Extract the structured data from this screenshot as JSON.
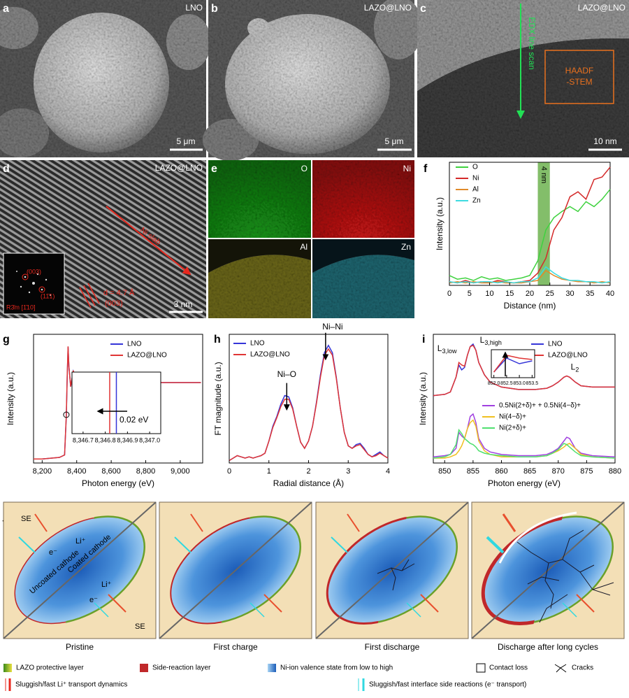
{
  "panels": {
    "a": {
      "letter": "a",
      "label": "LNO",
      "scale": "5 μm"
    },
    "b": {
      "letter": "b",
      "label": "LAZO@LNO",
      "scale": "5 μm"
    },
    "c": {
      "letter": "c",
      "label": "LAZO@LNO",
      "scan": "EDX line scan",
      "box": [
        "HAADF",
        "-STEM"
      ],
      "scale": "10 nm"
    },
    "d": {
      "letter": "d",
      "label": "LAZO@LNO",
      "slab": "Ni slab",
      "spacing": "d = 4.7 Å",
      "plane": "(003)",
      "fft_title": "R3̄m [1̄10]",
      "fft_spots": [
        "(003)",
        "(11̄1)"
      ],
      "scale": "3 nm"
    },
    "e": {
      "letter": "e",
      "maps": [
        "O",
        "Ni",
        "Al",
        "Zn"
      ]
    }
  },
  "chart_data": [
    {
      "type": "line",
      "panel": "f",
      "xlabel": "Distance (nm)",
      "ylabel": "Intensity (a.u.)",
      "xlim": [
        0,
        40
      ],
      "xticks": [
        0,
        5,
        10,
        15,
        20,
        25,
        30,
        35,
        40
      ],
      "ylim": [
        0,
        1
      ],
      "band": [
        22,
        25
      ],
      "band_label": "4 nm",
      "x": [
        0,
        2,
        4,
        6,
        8,
        10,
        12,
        14,
        16,
        18,
        20,
        22,
        24,
        26,
        28,
        30,
        32,
        34,
        36,
        38,
        40
      ],
      "series": [
        {
          "name": "O",
          "color": "#3fd23f",
          "values": [
            0.08,
            0.05,
            0.06,
            0.04,
            0.07,
            0.05,
            0.06,
            0.04,
            0.05,
            0.06,
            0.08,
            0.2,
            0.45,
            0.55,
            0.6,
            0.64,
            0.6,
            0.68,
            0.64,
            0.7,
            0.78
          ]
        },
        {
          "name": "Ni",
          "color": "#d42a2a",
          "values": [
            0.03,
            0.02,
            0.04,
            0.02,
            0.03,
            0.02,
            0.04,
            0.03,
            0.02,
            0.03,
            0.04,
            0.1,
            0.22,
            0.45,
            0.55,
            0.72,
            0.76,
            0.7,
            0.86,
            0.88,
            0.96
          ]
        },
        {
          "name": "Al",
          "color": "#e08a2a",
          "values": [
            0.02,
            0.03,
            0.02,
            0.03,
            0.02,
            0.02,
            0.03,
            0.02,
            0.02,
            0.02,
            0.03,
            0.04,
            0.12,
            0.08,
            0.05,
            0.04,
            0.03,
            0.03,
            0.02,
            0.03,
            0.02
          ]
        },
        {
          "name": "Zn",
          "color": "#3ddbe0",
          "values": [
            0.03,
            0.02,
            0.03,
            0.02,
            0.03,
            0.03,
            0.02,
            0.03,
            0.02,
            0.03,
            0.03,
            0.06,
            0.15,
            0.1,
            0.06,
            0.04,
            0.04,
            0.03,
            0.03,
            0.02,
            0.03
          ]
        }
      ]
    },
    {
      "type": "line",
      "panel": "g",
      "xlabel": "Photon energy (eV)",
      "ylabel": "Intensity (a.u.)",
      "xlim": [
        8150,
        9130
      ],
      "xticks": [
        {
          "value": 8200,
          "label": "8,200"
        },
        {
          "value": 8400,
          "label": "8,400"
        },
        {
          "value": 8600,
          "label": "8,600"
        },
        {
          "value": 8800,
          "label": "8,800"
        },
        {
          "value": 9000,
          "label": "9,000"
        }
      ],
      "ylim": [
        0,
        1.6
      ],
      "x": [
        8150,
        8200,
        8300,
        8330,
        8340,
        8345,
        8350,
        8355,
        8365,
        8380,
        8400,
        8420,
        8450,
        8500,
        8600,
        8700,
        8800,
        9000,
        9120
      ],
      "series": [
        {
          "name": "LNO",
          "color": "#3535d8",
          "values": [
            0.05,
            0.05,
            0.07,
            0.1,
            0.58,
            1.08,
            1.44,
            1.2,
            0.95,
            1.14,
            1.02,
            0.98,
            1.05,
            1.0,
            1.02,
            1.0,
            1.0,
            1.0,
            1.0
          ]
        },
        {
          "name": "LAZO@LNO",
          "color": "#e03535",
          "values": [
            0.05,
            0.05,
            0.07,
            0.1,
            0.6,
            1.1,
            1.45,
            1.2,
            0.95,
            1.15,
            1.02,
            0.98,
            1.05,
            1.0,
            1.02,
            1.0,
            1.0,
            1.0,
            1.0
          ]
        }
      ],
      "inset": {
        "xlim": [
          8346.65,
          8347.05
        ],
        "xticks": [
          {
            "value": 8346.7,
            "label": "8,346.7"
          },
          {
            "value": 8346.8,
            "label": "8,346.8"
          },
          {
            "value": 8346.9,
            "label": "8,346.9"
          },
          {
            "value": 8347.0,
            "label": "8,347.0"
          }
        ],
        "lines": [
          {
            "color": "#3535d8",
            "x": 8346.85
          },
          {
            "color": "#e03535",
            "x": 8346.82
          }
        ],
        "annotation": "0.02 eV"
      }
    },
    {
      "type": "line",
      "panel": "h",
      "xlabel": "Radial distance (Å)",
      "ylabel": "FT magnitude (a.u.)",
      "xlim": [
        0,
        4
      ],
      "xticks": [
        0,
        1,
        2,
        3,
        4
      ],
      "ylim": [
        0,
        1.05
      ],
      "annotations": [
        "Ni–O",
        "Ni–Ni"
      ],
      "x": [
        0,
        0.1,
        0.2,
        0.3,
        0.4,
        0.5,
        0.6,
        0.7,
        0.8,
        0.9,
        1.0,
        1.1,
        1.2,
        1.3,
        1.4,
        1.5,
        1.6,
        1.7,
        1.8,
        1.9,
        2.0,
        2.1,
        2.2,
        2.3,
        2.4,
        2.5,
        2.6,
        2.7,
        2.8,
        2.9,
        3.0,
        3.1,
        3.2,
        3.3,
        3.4,
        3.5,
        3.6,
        3.7,
        3.8,
        3.9,
        4.0
      ],
      "series": [
        {
          "name": "LNO",
          "color": "#3535d8",
          "values": [
            0.02,
            0.04,
            0.06,
            0.05,
            0.04,
            0.05,
            0.04,
            0.05,
            0.06,
            0.08,
            0.18,
            0.3,
            0.38,
            0.48,
            0.55,
            0.54,
            0.45,
            0.3,
            0.17,
            0.12,
            0.18,
            0.3,
            0.5,
            0.72,
            0.9,
            0.96,
            0.9,
            0.7,
            0.45,
            0.25,
            0.14,
            0.12,
            0.15,
            0.16,
            0.12,
            0.07,
            0.05,
            0.07,
            0.09,
            0.06,
            0.04
          ]
        },
        {
          "name": "LAZO@LNO",
          "color": "#e03535",
          "values": [
            0.02,
            0.04,
            0.06,
            0.05,
            0.04,
            0.05,
            0.04,
            0.05,
            0.06,
            0.08,
            0.18,
            0.29,
            0.37,
            0.46,
            0.52,
            0.52,
            0.44,
            0.3,
            0.17,
            0.12,
            0.18,
            0.3,
            0.49,
            0.7,
            0.88,
            0.93,
            0.88,
            0.69,
            0.45,
            0.25,
            0.14,
            0.12,
            0.14,
            0.15,
            0.11,
            0.07,
            0.05,
            0.06,
            0.08,
            0.06,
            0.04
          ]
        }
      ]
    },
    {
      "type": "line",
      "panel": "i",
      "xlabel": "Photon energy (eV)",
      "ylabel": "Intensity (a.u.)",
      "xlim": [
        848,
        880
      ],
      "xticks": [
        850,
        855,
        860,
        865,
        870,
        875,
        880
      ],
      "ylim": [
        0,
        1.05
      ],
      "edge_labels": [
        {
          "main": "L",
          "sub": "3,low"
        },
        {
          "main": "L",
          "sub": "3,high"
        },
        {
          "main": "L",
          "sub": "2"
        }
      ],
      "x": [
        848,
        850,
        851,
        852,
        852.5,
        853,
        853.5,
        854,
        854.5,
        855,
        855.5,
        856,
        857,
        858,
        860,
        863,
        866,
        868,
        869,
        870,
        871,
        871.5,
        872,
        873,
        874,
        876,
        880
      ],
      "series": [
        {
          "name": "LNO",
          "color": "#3535d8",
          "values": [
            0.55,
            0.56,
            0.58,
            0.7,
            0.8,
            0.76,
            0.78,
            0.88,
            0.95,
            0.97,
            0.92,
            0.82,
            0.72,
            0.66,
            0.62,
            0.6,
            0.6,
            0.61,
            0.63,
            0.66,
            0.7,
            0.71,
            0.7,
            0.66,
            0.63,
            0.62,
            0.62
          ]
        },
        {
          "name": "LAZO@LNO",
          "color": "#e03535",
          "values": [
            0.55,
            0.56,
            0.58,
            0.7,
            0.82,
            0.8,
            0.79,
            0.88,
            0.95,
            0.96,
            0.92,
            0.82,
            0.72,
            0.66,
            0.62,
            0.6,
            0.6,
            0.61,
            0.63,
            0.66,
            0.7,
            0.71,
            0.7,
            0.66,
            0.63,
            0.62,
            0.62
          ]
        },
        {
          "name": "0.5Ni(2+δ)+ + 0.5Ni(4−δ)+",
          "color": "#a040e0",
          "values": [
            0.05,
            0.06,
            0.07,
            0.12,
            0.25,
            0.22,
            0.2,
            0.28,
            0.38,
            0.4,
            0.33,
            0.2,
            0.12,
            0.09,
            0.07,
            0.06,
            0.06,
            0.07,
            0.09,
            0.12,
            0.18,
            0.21,
            0.2,
            0.12,
            0.08,
            0.06,
            0.05
          ]
        },
        {
          "name": "Ni(4−δ)+",
          "color": "#f0c020",
          "values": [
            0.04,
            0.04,
            0.05,
            0.07,
            0.1,
            0.14,
            0.2,
            0.28,
            0.33,
            0.35,
            0.3,
            0.18,
            0.1,
            0.07,
            0.05,
            0.05,
            0.05,
            0.06,
            0.08,
            0.1,
            0.13,
            0.15,
            0.16,
            0.12,
            0.07,
            0.05,
            0.04
          ]
        },
        {
          "name": "Ni(2+δ)+",
          "color": "#50e070",
          "values": [
            0.04,
            0.05,
            0.07,
            0.15,
            0.27,
            0.24,
            0.2,
            0.18,
            0.16,
            0.15,
            0.13,
            0.1,
            0.08,
            0.07,
            0.06,
            0.05,
            0.05,
            0.06,
            0.08,
            0.11,
            0.16,
            0.15,
            0.13,
            0.09,
            0.06,
            0.05,
            0.04
          ]
        }
      ],
      "inset": {
        "xlim": [
          851.9,
          853.6
        ],
        "ylim": [
          0.66,
          0.86
        ],
        "xticks": [
          {
            "value": 852.0,
            "label": "852.0"
          },
          852.5,
          {
            "value": 853.0,
            "label": "853.0"
          },
          853.5
        ]
      }
    }
  ],
  "schematic": {
    "letter": "j",
    "stages": [
      "Pristine",
      "First charge",
      "First discharge",
      "Discharge after long cycles"
    ],
    "labels": {
      "se": "SE",
      "li": "Li⁺",
      "e": "e⁻",
      "uncoated": "Uncoated cathode",
      "coated": "Coated cathode"
    },
    "legend": [
      "LAZO protective layer",
      "Side-reaction layer",
      "Ni-ion valence state from low to high",
      "Contact loss",
      "Cracks",
      "Sluggish/fast Li⁺ transport dynamics",
      "Sluggish/fast interface side reactions (e⁻ transport)"
    ]
  }
}
